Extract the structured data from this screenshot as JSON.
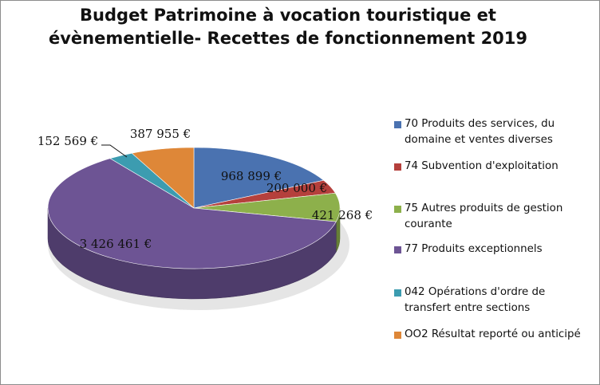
{
  "chart_data": {
    "type": "pie",
    "title_line1": "Budget Patrimoine à vocation touristique et",
    "title_line2": "évènementielle- Recettes de fonctionnement 2019",
    "legend_position": "right",
    "slices": [
      {
        "name": "70 Produits des services, du domaine et ventes diverses",
        "value": 968899,
        "label": "968 899 €",
        "color": "#4a72b0"
      },
      {
        "name": "74 Subvention d'exploitation",
        "value": 200000,
        "label": "200 000 €",
        "color": "#b5403c"
      },
      {
        "name": "75 Autres produits de gestion courante",
        "value": 421268,
        "label": "421 268 €",
        "color": "#8db04b"
      },
      {
        "name": "77 Produits exceptionnels",
        "value": 3426461,
        "label": "3 426 461 €",
        "color": "#6d5494"
      },
      {
        "name": "042 Opérations d'ordre de transfert entre sections",
        "value": 152569,
        "label": "152 569 €",
        "color": "#3c9cb0"
      },
      {
        "name": "OO2 Résultat reporté ou anticipé",
        "value": 387955,
        "label": "387 955 €",
        "color": "#de8738"
      }
    ]
  }
}
